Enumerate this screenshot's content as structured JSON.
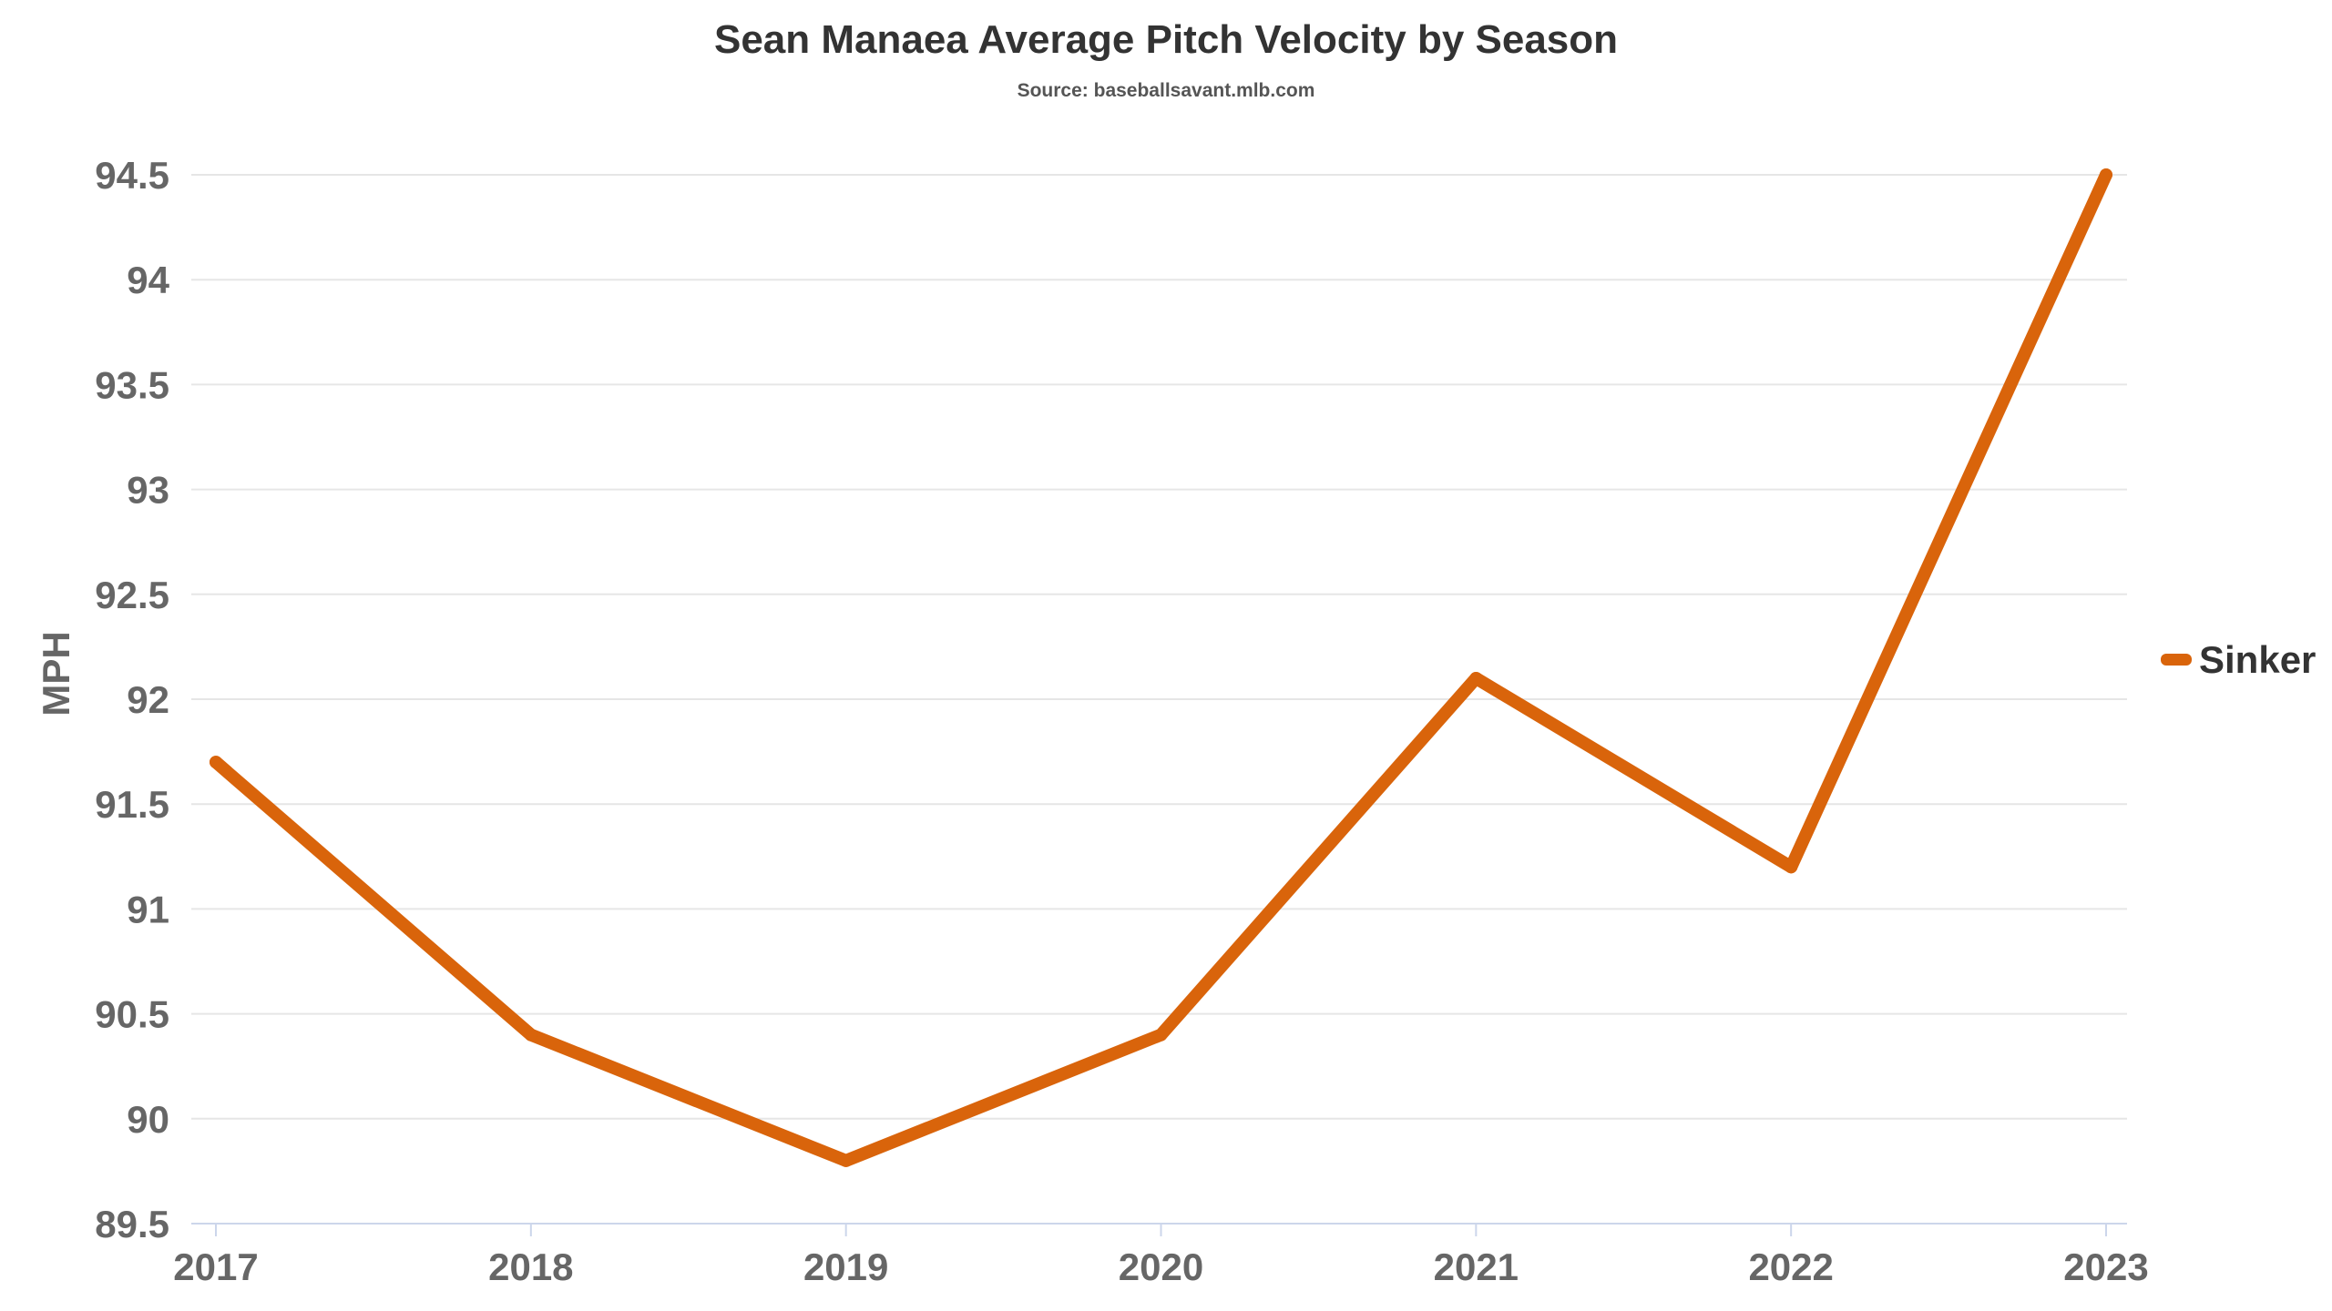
{
  "chart_data": {
    "type": "line",
    "title": "Sean Manaea Average Pitch Velocity by Season",
    "subtitle": "Source: baseballsavant.mlb.com",
    "ylabel": "MPH",
    "xlabel": "",
    "categories": [
      "2017",
      "2018",
      "2019",
      "2020",
      "2021",
      "2022",
      "2023"
    ],
    "ylim": [
      89.5,
      94.5
    ],
    "yticks": [
      "89.5",
      "90",
      "90.5",
      "91",
      "91.5",
      "92",
      "92.5",
      "93",
      "93.5",
      "94",
      "94.5"
    ],
    "grid": true,
    "legend_position": "right",
    "series": [
      {
        "name": "Sinker",
        "color": "#d9640b",
        "values": [
          91.7,
          90.4,
          89.8,
          90.4,
          92.1,
          91.2,
          94.5
        ]
      }
    ]
  }
}
